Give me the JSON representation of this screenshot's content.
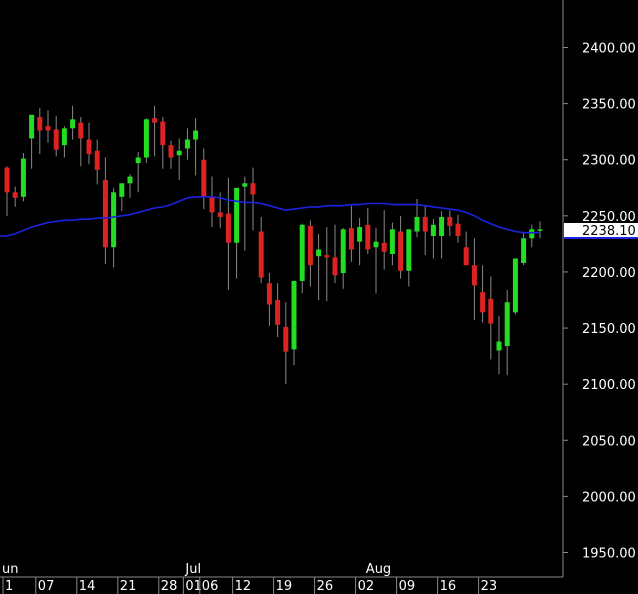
{
  "chart_data": {
    "type": "candlestick",
    "ylim": [
      1925,
      2425
    ],
    "y_ticks": [
      "2400.00",
      "2350.00",
      "2300.00",
      "2250.00",
      "2200.00",
      "2150.00",
      "2100.00",
      "2050.00",
      "2000.00",
      "1950.00"
    ],
    "y_tick_values": [
      2400,
      2350,
      2300,
      2250,
      2200,
      2150,
      2100,
      2050,
      2000,
      1950
    ],
    "last_price_label": "2238.10",
    "last_price": 2238.1,
    "x_labels": [
      {
        "text": "1",
        "i": 0
      },
      {
        "text": "07",
        "i": 4
      },
      {
        "text": "14",
        "i": 9
      },
      {
        "text": "21",
        "i": 14
      },
      {
        "text": "28",
        "i": 19
      },
      {
        "text": "01",
        "i": 22
      },
      {
        "text": "06",
        "i": 24
      },
      {
        "text": "12",
        "i": 28
      },
      {
        "text": "19",
        "i": 33
      },
      {
        "text": "26",
        "i": 38
      },
      {
        "text": "02",
        "i": 43
      },
      {
        "text": "09",
        "i": 48
      },
      {
        "text": "16",
        "i": 53
      },
      {
        "text": "23",
        "i": 58
      }
    ],
    "month_labels": [
      {
        "text": "un",
        "i": 0
      },
      {
        "text": "Jul",
        "i": 22
      },
      {
        "text": "Aug",
        "i": 44
      }
    ],
    "series": [
      {
        "type": "candles",
        "values": [
          [
            2293,
            2294,
            2250,
            2271
          ],
          [
            2271,
            2276,
            2258,
            2266
          ],
          [
            2267,
            2306,
            2263,
            2301
          ],
          [
            2319,
            2338,
            2292,
            2340
          ],
          [
            2338,
            2346,
            2305,
            2326
          ],
          [
            2330,
            2344,
            2315,
            2326
          ],
          [
            2327,
            2339,
            2303,
            2309
          ],
          [
            2313,
            2330,
            2302,
            2328
          ],
          [
            2328,
            2348,
            2318,
            2336
          ],
          [
            2333,
            2338,
            2294,
            2319
          ],
          [
            2318,
            2333,
            2296,
            2305
          ],
          [
            2308,
            2318,
            2278,
            2291
          ],
          [
            2282,
            2302,
            2207,
            2222
          ],
          [
            2222,
            2275,
            2204,
            2271
          ],
          [
            2267,
            2278,
            2254,
            2279
          ],
          [
            2279,
            2287,
            2266,
            2285
          ],
          [
            2297,
            2307,
            2271,
            2302
          ],
          [
            2302,
            2337,
            2297,
            2336
          ],
          [
            2337,
            2348,
            2303,
            2333
          ],
          [
            2334,
            2338,
            2292,
            2313
          ],
          [
            2313,
            2317,
            2292,
            2302
          ],
          [
            2304,
            2319,
            2282,
            2308
          ],
          [
            2310,
            2328,
            2300,
            2318
          ],
          [
            2318,
            2337,
            2286,
            2326
          ],
          [
            2300,
            2310,
            2256,
            2267
          ],
          [
            2267,
            2285,
            2240,
            2253
          ],
          [
            2253,
            2271,
            2239,
            2249
          ],
          [
            2252,
            2284,
            2184,
            2226
          ],
          [
            2226,
            2254,
            2194,
            2275
          ],
          [
            2276,
            2285,
            2219,
            2279
          ],
          [
            2279,
            2293,
            2237,
            2269
          ],
          [
            2236,
            2249,
            2190,
            2195
          ],
          [
            2190,
            2199,
            2152,
            2171
          ],
          [
            2175,
            2190,
            2142,
            2153
          ],
          [
            2151,
            2173,
            2100,
            2129
          ],
          [
            2131,
            2192,
            2117,
            2192
          ],
          [
            2192,
            2243,
            2181,
            2242
          ],
          [
            2241,
            2246,
            2187,
            2206
          ],
          [
            2214,
            2234,
            2175,
            2220
          ],
          [
            2215,
            2240,
            2174,
            2213
          ],
          [
            2213,
            2242,
            2190,
            2197
          ],
          [
            2199,
            2239,
            2185,
            2238
          ],
          [
            2239,
            2259,
            2209,
            2220
          ],
          [
            2227,
            2248,
            2206,
            2240
          ],
          [
            2242,
            2257,
            2216,
            2220
          ],
          [
            2222,
            2239,
            2181,
            2227
          ],
          [
            2226,
            2255,
            2202,
            2218
          ],
          [
            2216,
            2244,
            2206,
            2238
          ],
          [
            2236,
            2250,
            2194,
            2201
          ],
          [
            2201,
            2231,
            2187,
            2238
          ],
          [
            2236,
            2265,
            2231,
            2249
          ],
          [
            2249,
            2259,
            2215,
            2236
          ],
          [
            2232,
            2247,
            2212,
            2242
          ],
          [
            2232,
            2254,
            2212,
            2249
          ],
          [
            2249,
            2255,
            2232,
            2241
          ],
          [
            2243,
            2251,
            2226,
            2232
          ],
          [
            2222,
            2236,
            2208,
            2206
          ],
          [
            2206,
            2230,
            2157,
            2188
          ],
          [
            2182,
            2206,
            2155,
            2164
          ],
          [
            2176,
            2196,
            2122,
            2154
          ],
          [
            2130,
            2161,
            2109,
            2138
          ],
          [
            2134,
            2184,
            2108,
            2173
          ],
          [
            2164,
            2211,
            2162,
            2212
          ],
          [
            2208,
            2235,
            2206,
            2230
          ],
          [
            2230,
            2242,
            2222,
            2238
          ],
          [
            2238,
            2245,
            2230,
            2238
          ]
        ]
      },
      {
        "type": "line",
        "name": "",
        "color": "#1c22e0",
        "values": [
          2232,
          2234,
          2237,
          2240,
          2242,
          2244,
          2245,
          2246,
          2246,
          2247,
          2247,
          2248,
          2248,
          2249,
          2250,
          2251,
          2253,
          2255,
          2257,
          2258,
          2260,
          2263,
          2266,
          2267,
          2267,
          2267,
          2266,
          2264,
          2263,
          2262,
          2262,
          2261,
          2259,
          2257,
          2255,
          2256,
          2257,
          2258,
          2258,
          2259,
          2259,
          2259,
          2260,
          2260,
          2261,
          2261,
          2261,
          2260,
          2260,
          2260,
          2260,
          2259,
          2258,
          2257,
          2256,
          2255,
          2253,
          2250,
          2246,
          2243,
          2240,
          2238,
          2236,
          2235,
          2235,
          2235
        ]
      }
    ],
    "colors": {
      "up": "#22dd22",
      "down": "#dd2222",
      "wick": "#888888",
      "axis": "#888888",
      "ma": "#1c22e0",
      "last_bg": "#ffffff",
      "last_border": "#1c22e0"
    },
    "grid": false
  }
}
